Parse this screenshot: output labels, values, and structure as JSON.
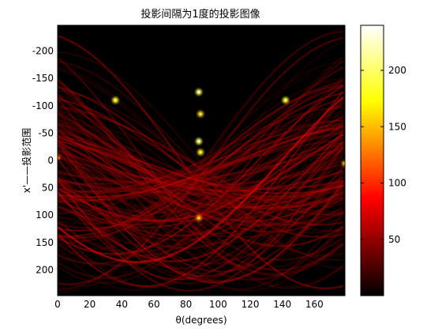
{
  "chart_data": {
    "type": "heatmap",
    "title": "投影间隔为1度的投影图像",
    "xlabel": "θ(degrees)",
    "ylabel": "x'——投影范围",
    "xlim": [
      0,
      179
    ],
    "ylim": [
      -247,
      247
    ],
    "y_axis_reversed": true,
    "x_ticks": [
      0,
      20,
      40,
      60,
      80,
      100,
      120,
      140,
      160
    ],
    "y_ticks": [
      -200,
      -150,
      -100,
      -50,
      0,
      50,
      100,
      150,
      200
    ],
    "colormap": "hot",
    "colorbar": {
      "range": [
        0,
        240
      ],
      "ticks": [
        50,
        100,
        150,
        200
      ]
    },
    "description_features": {
      "background_value": 0,
      "bright_spots": [
        {
          "theta": 36,
          "x": -110,
          "value": 180
        },
        {
          "theta": 88,
          "x": -125,
          "value": 200
        },
        {
          "theta": 89,
          "x": -85,
          "value": 160
        },
        {
          "theta": 88,
          "x": -35,
          "value": 200
        },
        {
          "theta": 89,
          "x": -15,
          "value": 170
        },
        {
          "theta": 88,
          "x": 105,
          "value": 140
        },
        {
          "theta": 142,
          "x": -110,
          "value": 180
        },
        {
          "theta": 179,
          "x": 5,
          "value": 150
        },
        {
          "theta": 0,
          "x": -5,
          "value": 120
        }
      ]
    }
  },
  "colors": {
    "background": "#ffffff",
    "frame": "#000000"
  }
}
